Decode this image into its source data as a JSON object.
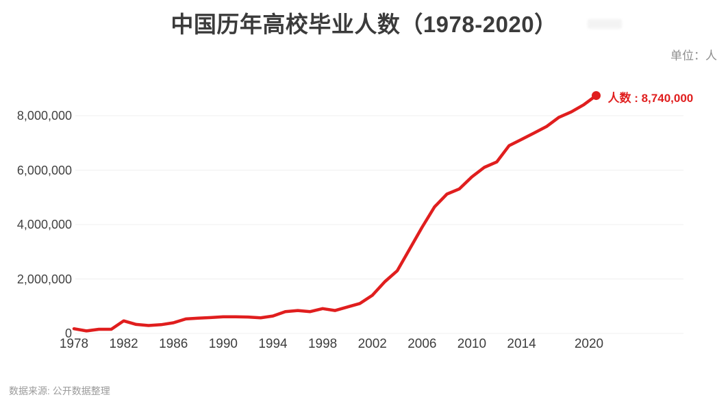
{
  "title": "中国历年高校毕业人数（1978-2020）",
  "unit_label": "单位：人",
  "source_note": "数据来源: 公开数据整理",
  "colors": {
    "line": "#e01e1e",
    "title_text": "#3b3b3b",
    "axis_text": "#424242",
    "muted_text": "#8e8e8e",
    "grid": "#efefef",
    "background": "#ffffff"
  },
  "chart_data": {
    "type": "line",
    "title": "中国历年高校毕业人数（1978-2020）",
    "unit": "人",
    "series_name": "人数",
    "grid": "horizontal",
    "legend": "none",
    "line_color": "#e01e1e",
    "ylim": [
      0,
      9200000
    ],
    "x": [
      1978,
      1979,
      1980,
      1981,
      1982,
      1983,
      1984,
      1985,
      1986,
      1987,
      1988,
      1989,
      1990,
      1991,
      1992,
      1993,
      1994,
      1995,
      1996,
      1997,
      1998,
      1999,
      2000,
      2001,
      2002,
      2003,
      2004,
      2005,
      2006,
      2007,
      2008,
      2009,
      2010,
      2011,
      2012,
      2013,
      2014,
      2015,
      2016,
      2017,
      2018,
      2019,
      2020
    ],
    "values": [
      170000,
      90000,
      150000,
      150000,
      460000,
      330000,
      290000,
      320000,
      390000,
      530000,
      560000,
      580000,
      610000,
      610000,
      600000,
      570000,
      640000,
      800000,
      840000,
      800000,
      910000,
      840000,
      970000,
      1100000,
      1400000,
      1900000,
      2300000,
      3100000,
      3900000,
      4650000,
      5120000,
      5310000,
      5750000,
      6100000,
      6300000,
      6900000,
      7130000,
      7360000,
      7600000,
      7940000,
      8140000,
      8400000,
      8740000
    ],
    "x_tick_labels": [
      "1978",
      "1982",
      "1986",
      "1990",
      "1994",
      "1998",
      "2002",
      "2006",
      "2010",
      "2014",
      "2020"
    ],
    "x_tick_years": [
      1978,
      1982,
      1986,
      1990,
      1994,
      1998,
      2002,
      2006,
      2010,
      2014,
      2020
    ],
    "y_ticks": [
      {
        "label": "0",
        "value": 0
      },
      {
        "label": "2,000,000",
        "value": 2000000
      },
      {
        "label": "4,000,000",
        "value": 4000000
      },
      {
        "label": "6,000,000",
        "value": 6000000
      },
      {
        "label": "8,000,000",
        "value": 8000000
      }
    ],
    "endpoint": {
      "year": 2020,
      "value": 8740000,
      "label": "人数 : 8,740,000"
    }
  }
}
